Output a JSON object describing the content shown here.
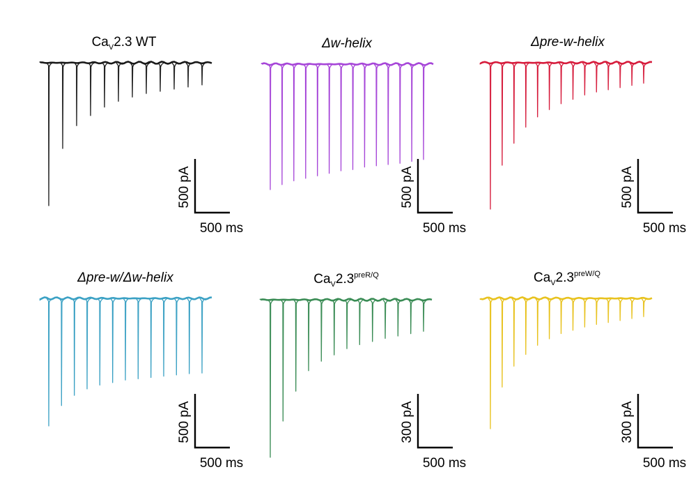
{
  "panels": [
    {
      "color": "#1a1a1a",
      "title": {
        "pre": "Ca",
        "sub": "V",
        "post": "2.3 WT",
        "sup": "",
        "italic": false
      },
      "pulse_amplitudes": [
        1.0,
        0.6,
        0.44,
        0.37,
        0.31,
        0.27,
        0.24,
        0.215,
        0.2,
        0.185,
        0.17,
        0.155
      ],
      "scale_y": "500 pA",
      "scale_x": "500 ms"
    },
    {
      "color": "#a646d8",
      "title": {
        "pre": "",
        "sub": "",
        "post": "Δw-helix",
        "sup": "",
        "italic": true
      },
      "pulse_amplitudes": [
        1.0,
        0.96,
        0.93,
        0.91,
        0.89,
        0.87,
        0.85,
        0.84,
        0.82,
        0.81,
        0.8,
        0.79,
        0.775,
        0.76
      ],
      "scale_y": "500 pA",
      "scale_x": "500 ms"
    },
    {
      "color": "#d61c3c",
      "title": {
        "pre": "",
        "sub": "",
        "post": "Δpre-w-helix",
        "sup": "",
        "italic": true
      },
      "pulse_amplitudes": [
        1.0,
        0.7,
        0.55,
        0.44,
        0.37,
        0.32,
        0.28,
        0.25,
        0.22,
        0.2,
        0.185,
        0.17,
        0.155,
        0.14
      ],
      "scale_y": "500 pA",
      "scale_x": "500 ms"
    },
    {
      "color": "#3ba1c4",
      "title": {
        "pre": "",
        "sub": "",
        "post": "Δpre-w/Δw-helix",
        "sup": "",
        "italic": true
      },
      "pulse_amplitudes": [
        1.0,
        0.84,
        0.76,
        0.71,
        0.68,
        0.66,
        0.64,
        0.63,
        0.62,
        0.61,
        0.6,
        0.59,
        0.585
      ],
      "scale_y": "500 pA",
      "scale_x": "500 ms"
    },
    {
      "color": "#3a8c55",
      "title": {
        "pre": "Ca",
        "sub": "V",
        "post": "2.3",
        "sup": "preR/Q",
        "italic": false
      },
      "pulse_amplitudes": [
        1.0,
        0.77,
        0.58,
        0.45,
        0.39,
        0.35,
        0.31,
        0.285,
        0.265,
        0.245,
        0.23,
        0.215,
        0.2
      ],
      "scale_y": "300 pA",
      "scale_x": "500 ms"
    },
    {
      "color": "#e8c21e",
      "title": {
        "pre": "Ca",
        "sub": "V",
        "post": "2.3",
        "sup": "preW/Q",
        "italic": false
      },
      "pulse_amplitudes": [
        1.0,
        0.68,
        0.52,
        0.43,
        0.36,
        0.31,
        0.27,
        0.245,
        0.22,
        0.2,
        0.185,
        0.17,
        0.155,
        0.14
      ],
      "scale_y": "300 pA",
      "scale_x": "500 ms"
    }
  ]
}
